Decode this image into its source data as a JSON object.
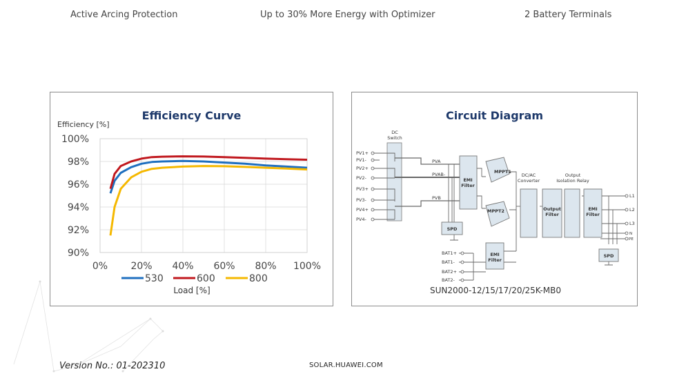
{
  "features": [
    "Active Arcing Protection",
    "Up to 30% More Energy with Optimizer",
    "2 Battery Terminals"
  ],
  "footer": {
    "version": "Version No.: 01-202310",
    "site": "SOLAR.HUAWEI.COM"
  },
  "efficiency_panel": {
    "title": "Efficiency Curve"
  },
  "circuit_panel": {
    "title": "Circuit Diagram",
    "model": "SUN2000-12/15/17/20/25K-MB0",
    "labels": {
      "dc_switch": [
        "DC",
        "Switch"
      ],
      "pv_inputs": [
        "PV1+",
        "PV1-",
        "PV2+",
        "PV2-",
        "PV3+",
        "PV3-",
        "PV4+",
        "PV4-"
      ],
      "pva": "PVA",
      "pvab": "PVAB-",
      "pvb": "PVB",
      "emi_filter": [
        "EMI",
        "Filter"
      ],
      "mppt1": "MPPT1",
      "mppt2": "MPPT2",
      "spd": "SPD",
      "dcac": [
        "DC/AC",
        "Converter"
      ],
      "output_relay": [
        "Output",
        "Isolation Relay"
      ],
      "output_filter": [
        "Output",
        "Filter"
      ],
      "bat": [
        "BAT1+",
        "BAT1-",
        "BAT2+",
        "BAT2-"
      ],
      "ac": [
        "L1",
        "L2",
        "L3",
        "N",
        "PE"
      ]
    }
  },
  "chart_data": {
    "type": "line",
    "title": "Efficiency Curve",
    "ylabel": "Efficiency [%]",
    "xlabel": "Load [%]",
    "xlim": [
      0,
      100
    ],
    "ylim": [
      90,
      100
    ],
    "xticks": [
      "0%",
      "20%",
      "40%",
      "60%",
      "80%",
      "100%"
    ],
    "yticks": [
      "90%",
      "92%",
      "94%",
      "96%",
      "98%",
      "100%"
    ],
    "grid": true,
    "legend_position": "bottom",
    "x": [
      5,
      7,
      10,
      15,
      20,
      25,
      30,
      40,
      50,
      60,
      70,
      80,
      90,
      100
    ],
    "series": [
      {
        "name": "530",
        "color": "#1f6fbf",
        "values": [
          95.2,
          96.3,
          97.0,
          97.5,
          97.8,
          97.95,
          98.0,
          98.05,
          98.0,
          97.9,
          97.8,
          97.65,
          97.55,
          97.45
        ]
      },
      {
        "name": "600",
        "color": "#c0171d",
        "values": [
          95.6,
          96.9,
          97.6,
          98.0,
          98.25,
          98.38,
          98.42,
          98.45,
          98.43,
          98.38,
          98.32,
          98.25,
          98.2,
          98.15
        ]
      },
      {
        "name": "800",
        "color": "#f5b800",
        "values": [
          91.5,
          94.0,
          95.6,
          96.6,
          97.1,
          97.35,
          97.45,
          97.55,
          97.6,
          97.58,
          97.52,
          97.45,
          97.38,
          97.3
        ]
      }
    ]
  }
}
